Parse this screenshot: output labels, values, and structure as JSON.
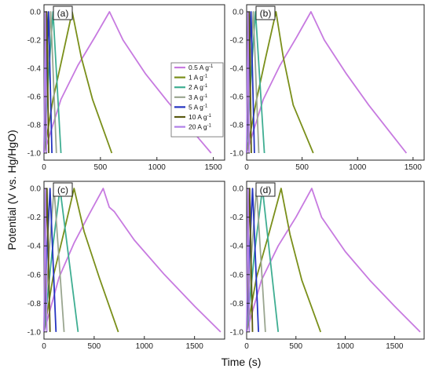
{
  "figure": {
    "ylabel": "Potential (V vs. Hg/HgO)",
    "xlabel": "Time (s)"
  },
  "legend": {
    "placement": "top-right of panel (a)",
    "entries": [
      {
        "label": "0.5 A g",
        "sup": "-1",
        "color": "#c77ae0"
      },
      {
        "label": "1 A g",
        "sup": "-1",
        "color": "#7a8f1a"
      },
      {
        "label": "2 A g",
        "sup": "-1",
        "color": "#3fae92"
      },
      {
        "label": "3 A g",
        "sup": "-1",
        "color": "#9aa690"
      },
      {
        "label": "5 A g",
        "sup": "-1",
        "color": "#2434c0"
      },
      {
        "label": "10 A g",
        "sup": "-1",
        "color": "#5a5a10"
      },
      {
        "label": "20 A g",
        "sup": "-1",
        "color": "#b080e8"
      }
    ]
  },
  "chart_data": [
    {
      "panel": "(a)",
      "type": "line",
      "xlim": [
        0,
        1600
      ],
      "ylim": [
        -1.05,
        0.05
      ],
      "xticks": [
        "0",
        "500",
        "1000",
        "1500"
      ],
      "yticks": [
        "0.0",
        "-0.2",
        "-0.4",
        "-0.6",
        "-0.8",
        "-1.0"
      ],
      "series": [
        {
          "color": "#c77ae0",
          "x": [
            0,
            150,
            300,
            450,
            580,
            700,
            900,
            1100,
            1300,
            1480
          ],
          "y": [
            -1.0,
            -0.62,
            -0.38,
            -0.18,
            0.0,
            -0.2,
            -0.44,
            -0.64,
            -0.83,
            -1.0
          ]
        },
        {
          "color": "#7a8f1a",
          "x": [
            0,
            80,
            160,
            250,
            330,
            430,
            600
          ],
          "y": [
            -1.0,
            -0.62,
            -0.33,
            0.0,
            -0.32,
            -0.62,
            -1.0
          ]
        },
        {
          "color": "#3fae92",
          "x": [
            0,
            40,
            80,
            150
          ],
          "y": [
            -1.0,
            -0.45,
            0.0,
            -1.0
          ]
        },
        {
          "color": "#9aa690",
          "x": [
            0,
            30,
            60,
            110
          ],
          "y": [
            -1.0,
            -0.45,
            0.0,
            -1.0
          ]
        },
        {
          "color": "#2434c0",
          "x": [
            0,
            20,
            40,
            70
          ],
          "y": [
            -1.0,
            -0.45,
            0.0,
            -1.0
          ]
        },
        {
          "color": "#5a5a10",
          "x": [
            0,
            12,
            24,
            42
          ],
          "y": [
            -1.0,
            -0.45,
            0.0,
            -1.0
          ]
        },
        {
          "color": "#b080e8",
          "x": [
            0,
            6,
            12,
            22
          ],
          "y": [
            -1.0,
            -0.45,
            0.0,
            -1.0
          ]
        }
      ]
    },
    {
      "panel": "(b)",
      "type": "line",
      "xlim": [
        0,
        1600
      ],
      "ylim": [
        -1.05,
        0.05
      ],
      "xticks": [
        "0",
        "500",
        "1000",
        "1500"
      ],
      "yticks": [
        "0.0",
        "-0.2",
        "-0.4",
        "-0.6",
        "-0.8",
        "-1.0"
      ],
      "series": [
        {
          "color": "#c77ae0",
          "x": [
            0,
            150,
            300,
            450,
            580,
            700,
            900,
            1100,
            1300,
            1440
          ],
          "y": [
            -1.0,
            -0.62,
            -0.38,
            -0.18,
            0.0,
            -0.2,
            -0.44,
            -0.66,
            -0.86,
            -1.0
          ]
        },
        {
          "color": "#7a8f1a",
          "x": [
            0,
            90,
            170,
            265,
            330,
            420,
            600
          ],
          "y": [
            -1.0,
            -0.62,
            -0.33,
            0.0,
            -0.32,
            -0.66,
            -1.0
          ]
        },
        {
          "color": "#3fae92",
          "x": [
            0,
            40,
            80,
            160
          ],
          "y": [
            -1.0,
            -0.45,
            0.0,
            -1.0
          ]
        },
        {
          "color": "#9aa690",
          "x": [
            0,
            30,
            60,
            110
          ],
          "y": [
            -1.0,
            -0.45,
            0.0,
            -1.0
          ]
        },
        {
          "color": "#2434c0",
          "x": [
            0,
            20,
            40,
            70
          ],
          "y": [
            -1.0,
            -0.45,
            0.0,
            -1.0
          ]
        },
        {
          "color": "#5a5a10",
          "x": [
            0,
            12,
            24,
            42
          ],
          "y": [
            -1.0,
            -0.45,
            0.0,
            -1.0
          ]
        },
        {
          "color": "#b080e8",
          "x": [
            0,
            6,
            12,
            22
          ],
          "y": [
            -1.0,
            -0.45,
            0.0,
            -1.0
          ]
        }
      ]
    },
    {
      "panel": "(c)",
      "type": "line",
      "xlim": [
        0,
        1800
      ],
      "ylim": [
        -1.05,
        0.05
      ],
      "xticks": [
        "0",
        "500",
        "1000",
        "1500"
      ],
      "yticks": [
        "0.0",
        "-0.2",
        "-0.4",
        "-0.6",
        "-0.8",
        "-1.0"
      ],
      "series": [
        {
          "color": "#c77ae0",
          "x": [
            0,
            150,
            300,
            450,
            590,
            650,
            700,
            900,
            1200,
            1500,
            1760
          ],
          "y": [
            -1.0,
            -0.62,
            -0.38,
            -0.18,
            0.0,
            -0.13,
            -0.16,
            -0.36,
            -0.6,
            -0.82,
            -1.0
          ]
        },
        {
          "color": "#7a8f1a",
          "x": [
            0,
            90,
            190,
            300,
            400,
            550,
            740
          ],
          "y": [
            -1.0,
            -0.62,
            -0.33,
            0.0,
            -0.3,
            -0.62,
            -1.0
          ]
        },
        {
          "color": "#3fae92",
          "x": [
            0,
            80,
            160,
            340
          ],
          "y": [
            -1.0,
            -0.45,
            0.0,
            -1.0
          ]
        },
        {
          "color": "#9aa690",
          "x": [
            0,
            50,
            100,
            200
          ],
          "y": [
            -1.0,
            -0.45,
            0.0,
            -1.0
          ]
        },
        {
          "color": "#2434c0",
          "x": [
            0,
            30,
            60,
            120
          ],
          "y": [
            -1.0,
            -0.45,
            0.0,
            -1.0
          ]
        },
        {
          "color": "#5a5a10",
          "x": [
            0,
            15,
            30,
            60
          ],
          "y": [
            -1.0,
            -0.45,
            0.0,
            -1.0
          ]
        },
        {
          "color": "#b080e8",
          "x": [
            0,
            7,
            14,
            28
          ],
          "y": [
            -1.0,
            -0.45,
            0.0,
            -1.0
          ]
        }
      ]
    },
    {
      "panel": "(d)",
      "type": "line",
      "xlim": [
        0,
        1800
      ],
      "ylim": [
        -1.05,
        0.05
      ],
      "xticks": [
        "0",
        "500",
        "1000",
        "1500"
      ],
      "yticks": [
        "0.0",
        "-0.2",
        "-0.4",
        "-0.6",
        "-0.8",
        "-1.0"
      ],
      "series": [
        {
          "color": "#c77ae0",
          "x": [
            0,
            150,
            320,
            500,
            660,
            760,
            1000,
            1250,
            1500,
            1760
          ],
          "y": [
            -1.0,
            -0.64,
            -0.4,
            -0.2,
            0.0,
            -0.2,
            -0.44,
            -0.64,
            -0.82,
            -1.0
          ]
        },
        {
          "color": "#7a8f1a",
          "x": [
            0,
            100,
            220,
            350,
            440,
            560,
            750
          ],
          "y": [
            -1.0,
            -0.62,
            -0.33,
            0.0,
            -0.32,
            -0.64,
            -1.0
          ]
        },
        {
          "color": "#3fae92",
          "x": [
            0,
            80,
            160,
            320
          ],
          "y": [
            -1.0,
            -0.45,
            0.0,
            -1.0
          ]
        },
        {
          "color": "#9aa690",
          "x": [
            0,
            50,
            100,
            190
          ],
          "y": [
            -1.0,
            -0.45,
            0.0,
            -1.0
          ]
        },
        {
          "color": "#2434c0",
          "x": [
            0,
            30,
            60,
            120
          ],
          "y": [
            -1.0,
            -0.45,
            0.0,
            -1.0
          ]
        },
        {
          "color": "#5a5a10",
          "x": [
            0,
            15,
            30,
            60
          ],
          "y": [
            -1.0,
            -0.45,
            0.0,
            -1.0
          ]
        },
        {
          "color": "#b080e8",
          "x": [
            0,
            7,
            14,
            28
          ],
          "y": [
            -1.0,
            -0.45,
            0.0,
            -1.0
          ]
        }
      ]
    }
  ]
}
